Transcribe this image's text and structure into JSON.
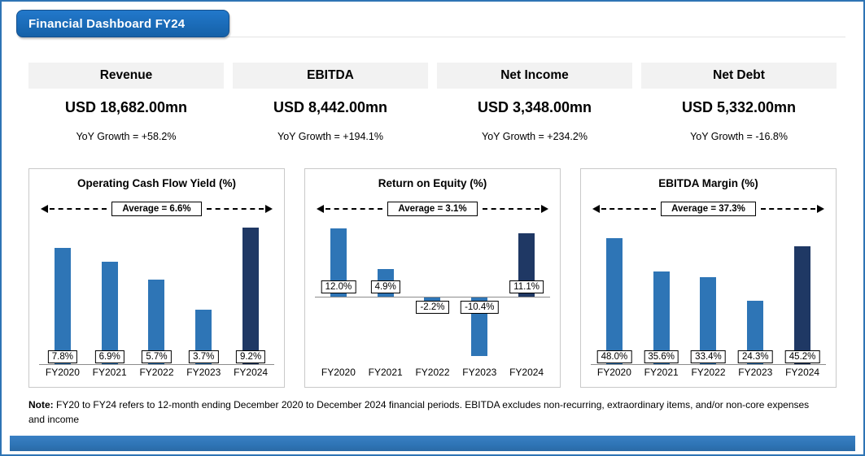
{
  "page": {
    "banner_title": "Financial Dashboard FY24"
  },
  "kpi_cards": [
    {
      "label": "Revenue",
      "value": "USD 18,682.00mn",
      "growth": "YoY Growth = +58.2%"
    },
    {
      "label": "EBITDA",
      "value": "USD 8,442.00mn",
      "growth": "YoY Growth = +194.1%"
    },
    {
      "label": "Net Income",
      "value": "USD 3,348.00mn",
      "growth": "YoY Growth = +234.2%"
    },
    {
      "label": "Net Debt",
      "value": "USD 5,332.00mn",
      "growth": "YoY Growth = -16.8%"
    }
  ],
  "chart_data": [
    {
      "type": "bar",
      "title": "Operating Cash Flow Yield (%)",
      "categories": [
        "FY2020",
        "FY2021",
        "FY2022",
        "FY2023",
        "FY2024"
      ],
      "values": [
        7.8,
        6.9,
        5.7,
        3.7,
        9.2
      ],
      "value_labels": [
        "7.8%",
        "6.9%",
        "5.7%",
        "3.7%",
        "9.2%"
      ],
      "average": 6.6,
      "average_label": "Average = 6.6%",
      "ylim": [
        0,
        9.5
      ],
      "grid": false,
      "legend": "none",
      "highlight_last_bar": true
    },
    {
      "type": "bar",
      "title": "Return on Equity (%)",
      "categories": [
        "FY2020",
        "FY2021",
        "FY2022",
        "FY2023",
        "FY2024"
      ],
      "values": [
        12.0,
        4.9,
        -2.2,
        -10.4,
        11.1
      ],
      "value_labels": [
        "12.0%",
        "4.9%",
        "-2.2%",
        "-10.4%",
        "11.1%"
      ],
      "average": 3.1,
      "average_label": "Average = 3.1%",
      "ylim": [
        -12,
        13
      ],
      "grid": false,
      "legend": "none",
      "highlight_last_bar": true
    },
    {
      "type": "bar",
      "title": "EBITDA Margin (%)",
      "categories": [
        "FY2020",
        "FY2021",
        "FY2022",
        "FY2023",
        "FY2024"
      ],
      "values": [
        48.0,
        35.6,
        33.4,
        24.3,
        45.2
      ],
      "value_labels": [
        "48.0%",
        "35.6%",
        "33.4%",
        "24.3%",
        "45.2%"
      ],
      "average": 37.3,
      "average_label": "Average = 37.3%",
      "ylim": [
        0,
        54
      ],
      "grid": false,
      "legend": "none",
      "highlight_last_bar": true
    }
  ],
  "note": {
    "prefix": "Note:",
    "text": " FY20 to FY24 refers to 12-month ending December 2020 to December 2024 financial periods. EBITDA excludes non-recurring, extraordinary items, and/or non-core expenses and income"
  },
  "colors": {
    "bar": "#2E75B6",
    "highlight_bar": "#1F3864",
    "banner_blue": "#1B6FC0",
    "border_blue": "#2E74B5",
    "card_header_bg": "#F2F2F2",
    "bottom_strip": "#2E74B5"
  }
}
